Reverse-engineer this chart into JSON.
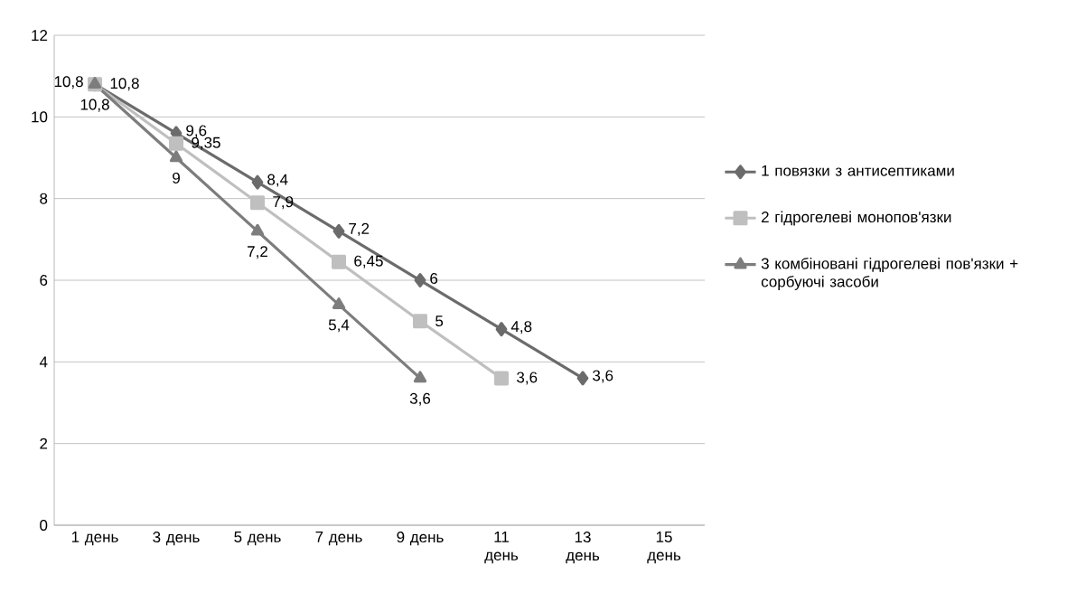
{
  "chart_data": {
    "type": "line",
    "categories": [
      "1 день",
      "3 день",
      "5 день",
      "7 день",
      "9 день",
      "11 день",
      "13 день",
      "15 день"
    ],
    "series": [
      {
        "name": "1  повязки з антисептиками",
        "color": "#6b6b6b",
        "marker": "diamond",
        "values": [
          10.8,
          9.6,
          8.4,
          7.2,
          6,
          4.8,
          3.6,
          null
        ],
        "value_labels": [
          "10,8",
          "9,6",
          "8,4",
          "7,2",
          "6",
          "4,8",
          "3,6",
          null
        ]
      },
      {
        "name": "2 гідрогелеві монопов'язки",
        "color": "#bfbfbf",
        "marker": "square",
        "values": [
          10.8,
          9.35,
          7.9,
          6.45,
          5,
          3.6,
          null,
          null
        ],
        "value_labels": [
          "10,8",
          "9,35",
          "7,9",
          "6,45",
          "5",
          "3,6",
          null,
          null
        ]
      },
      {
        "name": "3 комбіновані гідрогелеві пов'язки + сорбуючі засоби",
        "color": "#7d7d7d",
        "marker": "triangle",
        "values": [
          10.8,
          9,
          7.2,
          5.4,
          3.6,
          null,
          null,
          null
        ],
        "value_labels": [
          "10,8",
          "9",
          "7,2",
          "5,4",
          "3,6",
          null,
          null,
          null
        ]
      }
    ],
    "ylim": [
      0,
      12
    ],
    "yticks": [
      0,
      2,
      4,
      6,
      8,
      10,
      12
    ],
    "grid": "y",
    "legend": "right"
  }
}
